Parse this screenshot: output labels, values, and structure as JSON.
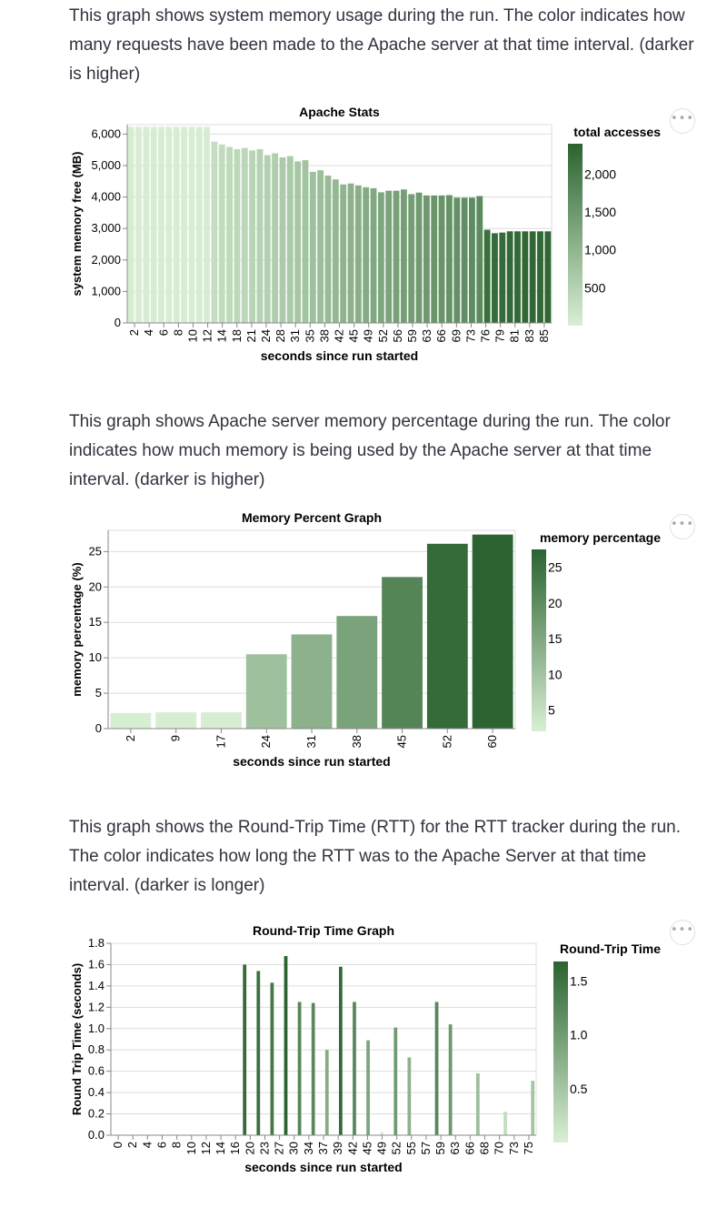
{
  "paragraphs": {
    "p1": "This graph shows system memory usage during the run. The color indicates how many requests have been made to the Apache server at that time interval. (darker is higher)",
    "p2": "This graph shows Apache server memory percentage during the run. The color indicates how much memory is being used by the Apache server at that time interval. (darker is higher)",
    "p3": "This graph shows the Round-Trip Time (RTT) for the RTT tracker during the run. The color indicates how long the RTT was to the Apache Server at that time interval. (darker is longer)"
  },
  "menu": {
    "label": "•••"
  },
  "chart_data": [
    {
      "type": "bar",
      "title": "Apache Stats",
      "xlabel": "seconds since run started",
      "ylabel": "system memory free (MB)",
      "ylim": [
        0,
        6300
      ],
      "yticks": [
        "0",
        "1,000",
        "2,000",
        "3,000",
        "4,000",
        "5,000",
        "6,000"
      ],
      "xticks": [
        "2",
        "4",
        "6",
        "8",
        "10",
        "12",
        "14",
        "18",
        "21",
        "24",
        "28",
        "31",
        "35",
        "38",
        "42",
        "45",
        "49",
        "52",
        "56",
        "59",
        "63",
        "66",
        "69",
        "73",
        "76",
        "79",
        "81",
        "83",
        "85"
      ],
      "legend": {
        "title": "total accesses",
        "labels": [
          "2,000",
          "1,500",
          "1,000",
          "500"
        ],
        "position": "right",
        "min": 0,
        "max": 2400
      },
      "colors": {
        "light": "#d9efd4",
        "dark": "#2b6330"
      },
      "values": [
        6230,
        6230,
        6230,
        6230,
        6230,
        6230,
        6230,
        6230,
        6230,
        6230,
        6230,
        5760,
        5670,
        5590,
        5520,
        5560,
        5480,
        5520,
        5330,
        5390,
        5260,
        5300,
        5130,
        5170,
        4800,
        4850,
        4680,
        4560,
        4400,
        4430,
        4370,
        4310,
        4280,
        4150,
        4200,
        4200,
        4240,
        4090,
        4140,
        4050,
        4050,
        4050,
        4060,
        3980,
        3980,
        3980,
        4030,
        2960,
        2850,
        2870,
        2910,
        2910,
        2910,
        2910,
        2910,
        2910
      ],
      "accesses": [
        30,
        30,
        30,
        30,
        30,
        30,
        30,
        30,
        30,
        30,
        30,
        300,
        330,
        360,
        390,
        420,
        450,
        490,
        530,
        570,
        610,
        650,
        700,
        740,
        800,
        840,
        890,
        950,
        1010,
        1060,
        1110,
        1160,
        1210,
        1250,
        1290,
        1330,
        1370,
        1410,
        1450,
        1480,
        1520,
        1560,
        1590,
        1620,
        1650,
        1690,
        1720,
        2200,
        2250,
        2270,
        2290,
        2300,
        2310,
        2320,
        2330,
        2340
      ]
    },
    {
      "type": "bar",
      "title": "Memory Percent Graph",
      "xlabel": "seconds since run started",
      "ylabel": "memory percentage (%)",
      "ylim": [
        0,
        28
      ],
      "yticks": [
        "0",
        "5",
        "10",
        "15",
        "20",
        "25"
      ],
      "categories": [
        "2",
        "9",
        "17",
        "24",
        "31",
        "38",
        "45",
        "52",
        "60"
      ],
      "values": [
        2.2,
        2.3,
        2.3,
        10.5,
        13.3,
        15.9,
        21.4,
        26.1,
        27.4
      ],
      "legend": {
        "title": "memory percentage",
        "labels": [
          "25",
          "20",
          "15",
          "10",
          "5"
        ],
        "position": "right",
        "min": 2,
        "max": 27.5
      },
      "colors": {
        "light": "#d9efd4",
        "dark": "#2b6330"
      }
    },
    {
      "type": "bar",
      "title": "Round-Trip Time Graph",
      "xlabel": "seconds since run started",
      "ylabel": "Round Trip Time (seconds)",
      "ylim": [
        0,
        1.8
      ],
      "yticks": [
        "0.0",
        "0.2",
        "0.4",
        "0.6",
        "0.8",
        "1.0",
        "1.2",
        "1.4",
        "1.6",
        "1.8"
      ],
      "xticks": [
        "0",
        "2",
        "4",
        "6",
        "8",
        "10",
        "12",
        "14",
        "16",
        "20",
        "23",
        "27",
        "30",
        "34",
        "37",
        "39",
        "42",
        "45",
        "49",
        "52",
        "55",
        "57",
        "59",
        "63",
        "66",
        "68",
        "70",
        "73",
        "75"
      ],
      "values": [
        0,
        0,
        0,
        0,
        0,
        0,
        0,
        0,
        0,
        0,
        0,
        0,
        0,
        0,
        0,
        0,
        0,
        0,
        0,
        1.6,
        0,
        1.54,
        0,
        1.43,
        0,
        1.68,
        0,
        1.25,
        0,
        1.24,
        0,
        0.8,
        0,
        1.58,
        0,
        1.25,
        0,
        0.89,
        0,
        0.03,
        0,
        1.01,
        0,
        0.73,
        0,
        0,
        0,
        1.25,
        0,
        1.04,
        0,
        0,
        0,
        0.58,
        0,
        0,
        0,
        0.22,
        0,
        0,
        0,
        0.51
      ],
      "legend": {
        "title": "Round-Trip Time",
        "labels": [
          "1.5",
          "1.0",
          "0.5"
        ],
        "position": "right",
        "min": 0,
        "max": 1.68
      },
      "colors": {
        "light": "#d9efd4",
        "dark": "#2b6330"
      }
    }
  ]
}
